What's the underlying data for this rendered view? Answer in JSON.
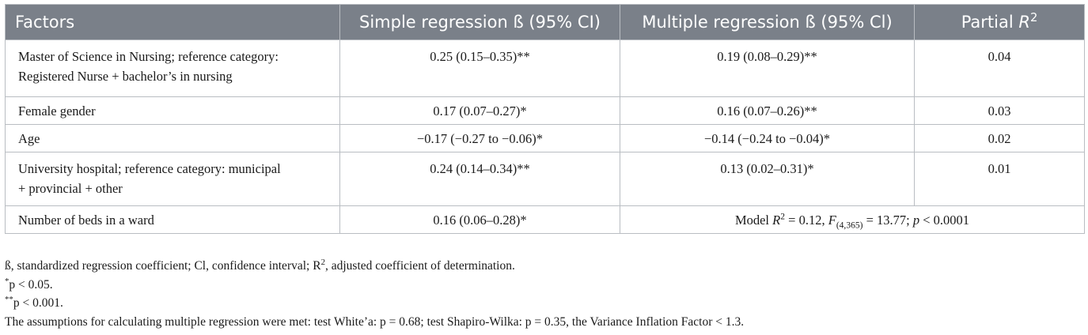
{
  "header": {
    "factors": "Factors",
    "simple": "Simple regression ß (95% CI)",
    "multiple": "Multiple regression ß (95% Cl)",
    "partial_prefix": "Partial ",
    "partial_var": "R",
    "partial_sup": "2"
  },
  "rows": [
    {
      "factor_line1": "Master of Science in Nursing; reference category:",
      "factor_line2": "Registered Nurse + bachelor’s in nursing",
      "simple": "0.25 (0.15–0.35)**",
      "multiple": "0.19 (0.08–0.29)**",
      "partial": "0.04"
    },
    {
      "factor": "Female gender",
      "simple": "0.17 (0.07–0.27)*",
      "multiple": "0.16 (0.07–0.26)**",
      "partial": "0.03"
    },
    {
      "factor": "Age",
      "simple": "−0.17 (−0.27 to −0.06)*",
      "multiple": "−0.14 (−0.24 to −0.04)*",
      "partial": "0.02"
    },
    {
      "factor_line1": "University hospital; reference category: municipal",
      "factor_line2": "+ provincial + other",
      "simple": "0.24 (0.14–0.34)**",
      "multiple": "0.13 (0.02–0.31)*",
      "partial": "0.01"
    },
    {
      "factor": "Number of beds in a ward",
      "simple": "0.16 (0.06–0.28)*"
    }
  ],
  "model_summary": {
    "model": "Model ",
    "r": "R",
    "r_sup": "2",
    "r_val": " = 0.12, ",
    "f": "F",
    "f_sub": "(4,365)",
    "f_val": " = 13.77; ",
    "p": "p",
    "p_val": " < 0.0001"
  },
  "notes": {
    "abbrev_prefix": "ß, standardized regression coefficient; Cl, confidence interval; R",
    "abbrev_sup": "2",
    "abbrev_suffix": ", adjusted coefficient of determination.",
    "sig1_star": "*",
    "sig1_text": "p < 0.05.",
    "sig2_star": "**",
    "sig2_text": "p < 0.001.",
    "assumptions": "The assumptions for calculating multiple regression were met: test White’a: p = 0.68; test Shapiro-Wilka: p = 0.35, the Variance Inflation Factor < 1.3."
  },
  "colors": {
    "header_bg": "#7a8089",
    "border": "#b9bdc2"
  }
}
